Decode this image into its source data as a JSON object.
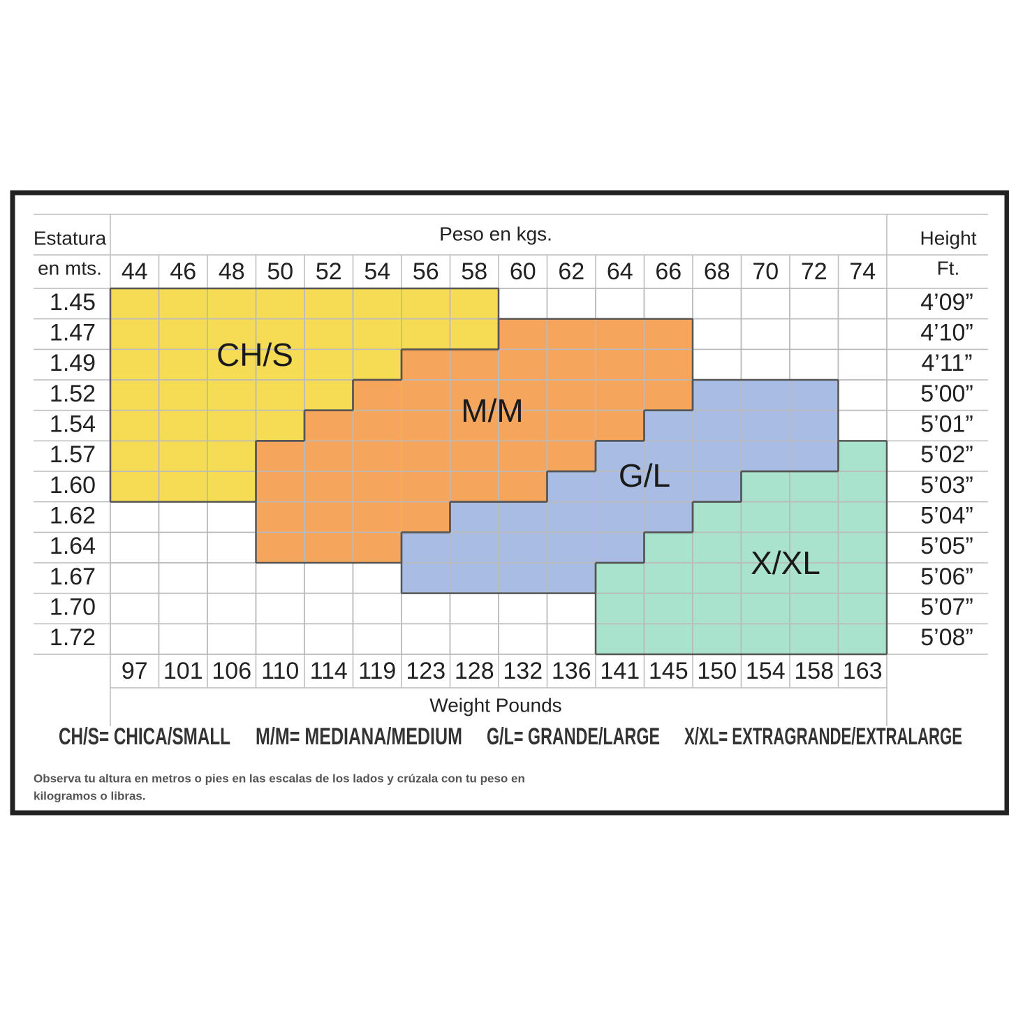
{
  "left_header": [
    "Estatura",
    "en mts."
  ],
  "top_header": "Peso en kgs.",
  "right_header": [
    "Height",
    "Ft."
  ],
  "kg": [
    44,
    46,
    48,
    50,
    52,
    54,
    56,
    58,
    60,
    62,
    64,
    66,
    68,
    70,
    72,
    74
  ],
  "meters": [
    "1.45",
    "1.47",
    "1.49",
    "1.52",
    "1.54",
    "1.57",
    "1.60",
    "1.62",
    "1.64",
    "1.67",
    "1.70",
    "1.72"
  ],
  "feet": [
    "4’09”",
    "4’10”",
    "4’11”",
    "5’00”",
    "5’01”",
    "5’02”",
    "5’03”",
    "5’04”",
    "5’05”",
    "5’06”",
    "5’07”",
    "5’08”"
  ],
  "pounds": [
    97,
    101,
    106,
    110,
    114,
    119,
    123,
    128,
    132,
    136,
    141,
    145,
    150,
    154,
    158,
    163
  ],
  "bottom_header": "Weight Pounds",
  "sizes": [
    {
      "code": "CH/S",
      "color": "#f6dc55"
    },
    {
      "code": "M/M",
      "color": "#f5a55c"
    },
    {
      "code": "G/L",
      "color": "#a8bce4"
    },
    {
      "code": "X/XL",
      "color": "#a9e2cd"
    }
  ],
  "legend": [
    "CH/S= CHICA/SMALL",
    "M/M= MEDIANA/MEDIUM",
    "G/L= GRANDE/LARGE",
    "X/XL= EXTRAGRANDE/EXTRALARGE"
  ],
  "note": [
    "Observa tu altura en metros o pies en las escalas de los lados y crúzala con tu peso en",
    "kilogramos o libras."
  ]
}
